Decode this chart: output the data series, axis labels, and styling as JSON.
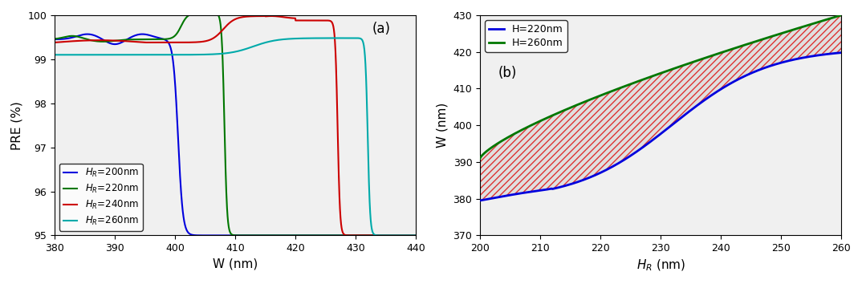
{
  "panel_a": {
    "title": "(a)",
    "xlabel": "W (nm)",
    "ylabel": "PRE (%)",
    "xlim": [
      380,
      440
    ],
    "ylim": [
      95,
      100
    ],
    "yticks": [
      95,
      96,
      97,
      98,
      99,
      100
    ],
    "xticks": [
      380,
      390,
      400,
      410,
      420,
      430,
      440
    ],
    "colors": {
      "HR200": "#0000dd",
      "HR220": "#007700",
      "HR240": "#cc0000",
      "HR260": "#00aaaa"
    },
    "labels": {
      "HR200": "$H_R$=200nm",
      "HR220": "$H_R$=220nm",
      "HR240": "$H_R$=240nm",
      "HR260": "$H_R$=260nm"
    },
    "background": "#f0f0f0"
  },
  "panel_b": {
    "title": "(b)",
    "xlabel": "$H_R$ (nm)",
    "ylabel": "W (nm)",
    "xlim": [
      200,
      260
    ],
    "ylim": [
      370,
      430
    ],
    "yticks": [
      370,
      380,
      390,
      400,
      410,
      420,
      430
    ],
    "xticks": [
      200,
      210,
      220,
      230,
      240,
      250,
      260
    ],
    "colors": {
      "H220": "#0000dd",
      "H260": "#007700"
    },
    "labels": {
      "H220": "H=220nm",
      "H260": "H=260nm"
    },
    "hatch_color": "#dd3333",
    "fill_bg": "#e0e0e0",
    "background": "#f0f0f0"
  }
}
